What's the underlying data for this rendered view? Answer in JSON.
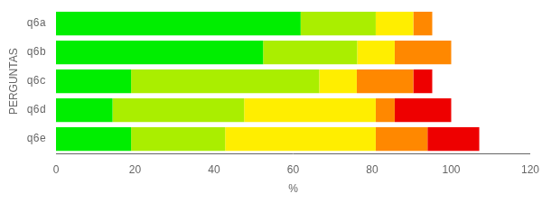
{
  "chart_data": {
    "type": "bar",
    "orientation": "horizontal",
    "stacked": true,
    "categories": [
      "q6a",
      "q6b",
      "q6c",
      "q6d",
      "q6e"
    ],
    "series": [
      {
        "color": "#00ee00",
        "values": [
          61.9,
          52.4,
          19.0,
          14.3,
          19.0
        ]
      },
      {
        "color": "#aaee00",
        "values": [
          19.0,
          23.8,
          47.6,
          33.3,
          23.8
        ]
      },
      {
        "color": "#ffee00",
        "values": [
          9.5,
          9.5,
          9.5,
          33.3,
          38.1
        ]
      },
      {
        "color": "#ff8800",
        "values": [
          4.8,
          14.3,
          14.3,
          4.8,
          13.1
        ]
      },
      {
        "color": "#ee0000",
        "values": [
          0.0,
          0.0,
          4.8,
          14.3,
          13.1
        ]
      }
    ],
    "xlabel": "%",
    "ylabel": "PERGUNTAS",
    "xlim": [
      0,
      120
    ],
    "xticks": [
      0,
      20,
      40,
      60,
      80,
      100,
      120
    ],
    "grid": false
  }
}
